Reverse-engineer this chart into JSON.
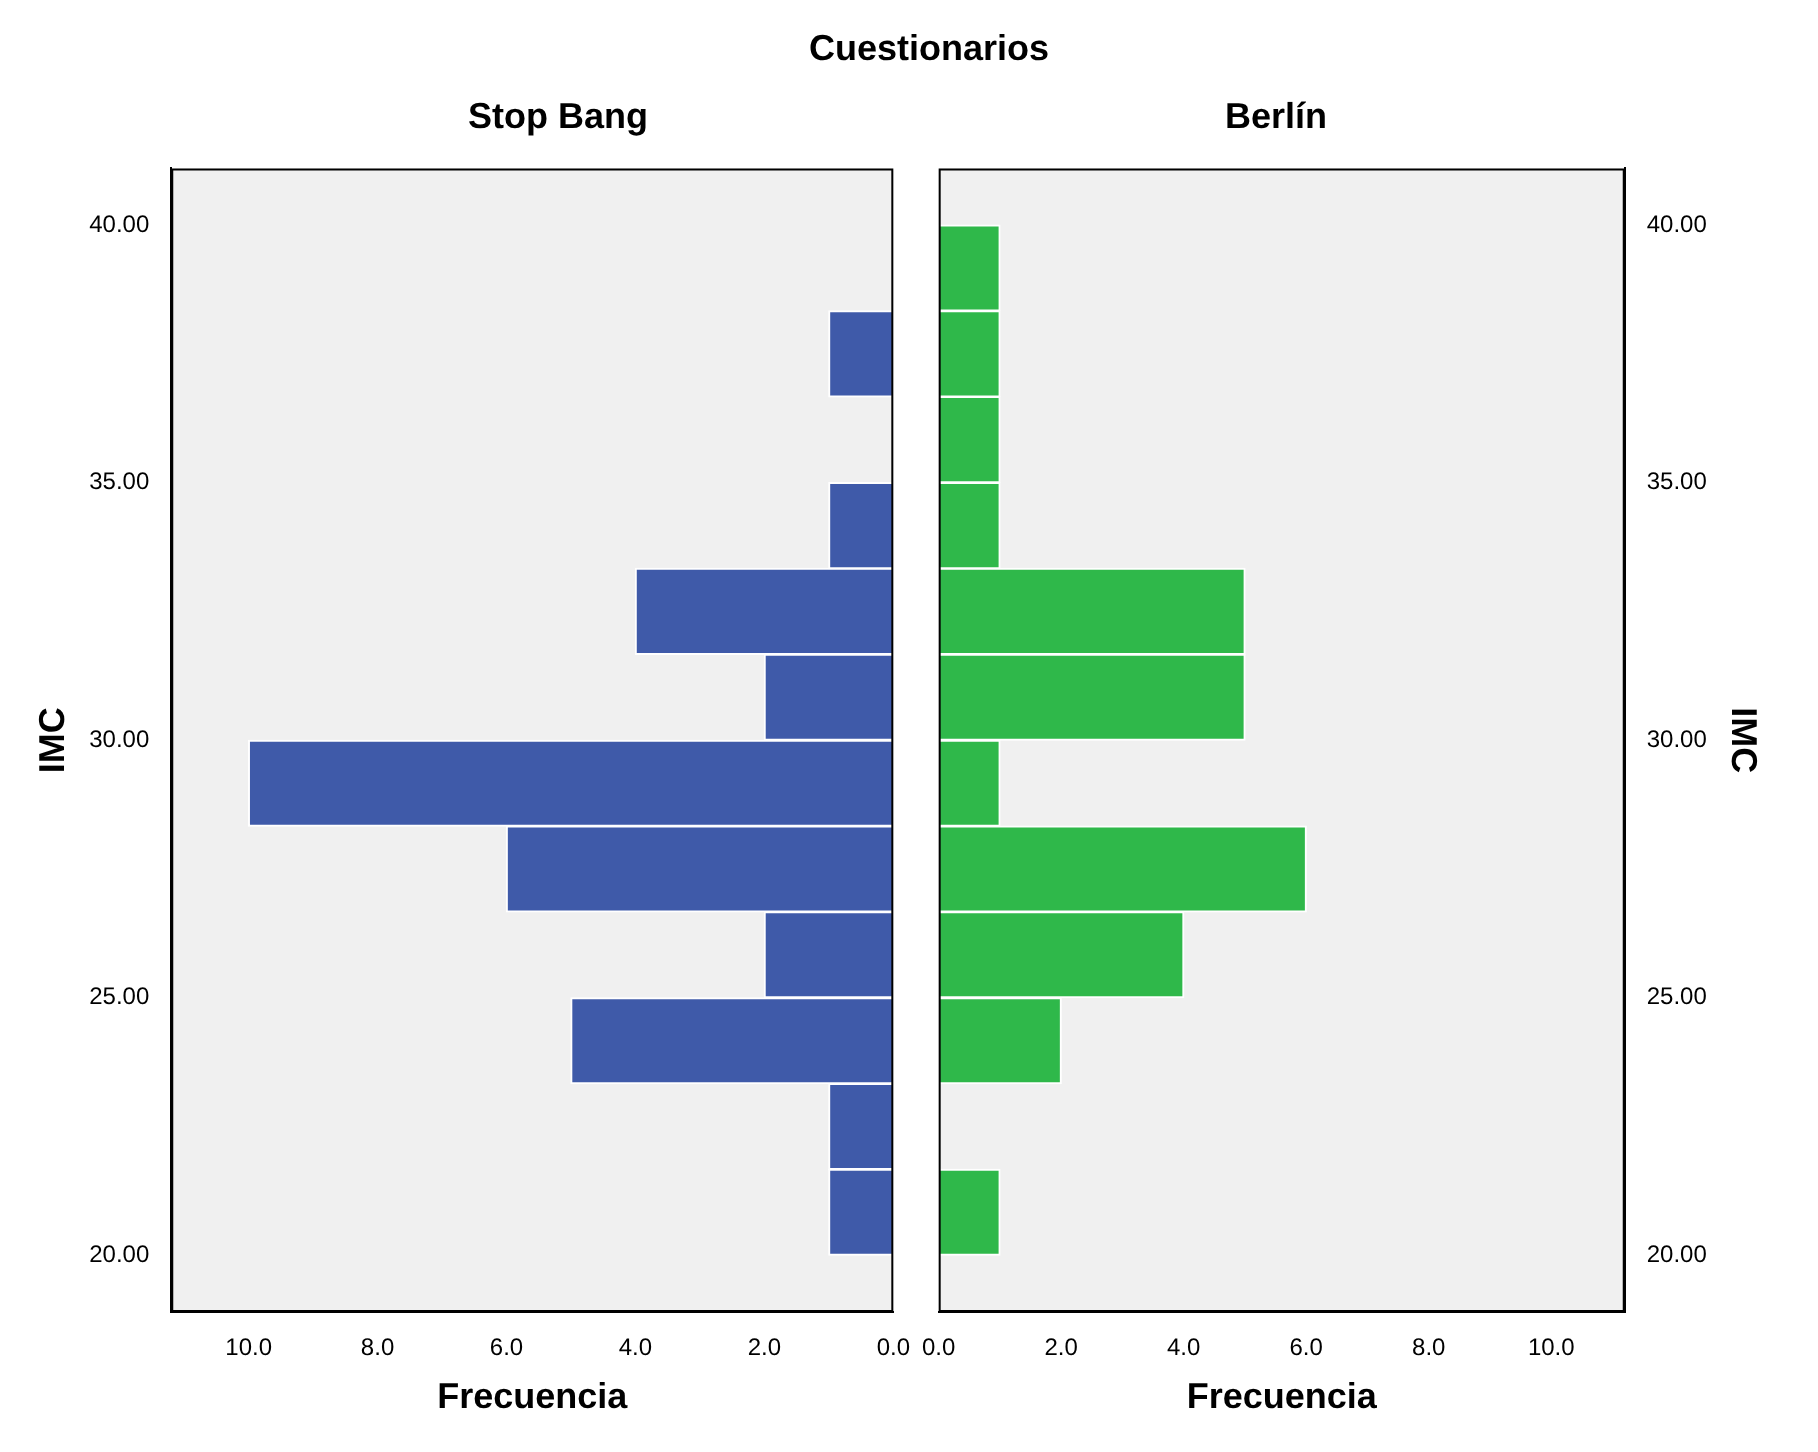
{
  "chart_data": [
    {
      "type": "histogram",
      "title": "Cuestionarios",
      "subtitle": "Stop Bang",
      "orientation": "horizontal",
      "xlabel": "Frecuencia",
      "ylabel": "IMC",
      "color": "#3f5aa9",
      "bins": [
        20,
        21.67,
        23.33,
        25,
        26.67,
        28.33,
        30,
        31.67,
        33.33,
        35,
        36.67,
        38.33,
        40
      ],
      "values": [
        1,
        1,
        5,
        2,
        6,
        10,
        2,
        4,
        1,
        0,
        1,
        0
      ],
      "xlim": [
        11.2,
        0
      ],
      "xticks": [
        {
          "value": 10,
          "label": "10.0"
        },
        {
          "value": 8,
          "label": "8.0"
        },
        {
          "value": 6,
          "label": "6.0"
        },
        {
          "value": 4,
          "label": "4.0"
        },
        {
          "value": 2,
          "label": "2.0"
        },
        {
          "value": 0,
          "label": "0.0"
        }
      ],
      "ylim": [
        18.9,
        41.1
      ],
      "yticks": [
        {
          "value": 20,
          "label": "20.00"
        },
        {
          "value": 25,
          "label": "25.00"
        },
        {
          "value": 30,
          "label": "30.00"
        },
        {
          "value": 35,
          "label": "35.00"
        },
        {
          "value": 40,
          "label": "40.00"
        }
      ]
    },
    {
      "type": "histogram",
      "subtitle": "Berlín",
      "orientation": "horizontal",
      "xlabel": "Frecuencia",
      "ylabel": "IMC",
      "color": "#2fb84a",
      "bins": [
        20,
        21.67,
        23.33,
        25,
        26.67,
        28.33,
        30,
        31.67,
        33.33,
        35,
        36.67,
        38.33,
        40
      ],
      "values": [
        1,
        0,
        2,
        4,
        6,
        1,
        5,
        5,
        1,
        1,
        1,
        1
      ],
      "xlim": [
        0,
        11.2
      ],
      "xticks": [
        {
          "value": 0,
          "label": "0.0"
        },
        {
          "value": 2,
          "label": "2.0"
        },
        {
          "value": 4,
          "label": "4.0"
        },
        {
          "value": 6,
          "label": "6.0"
        },
        {
          "value": 8,
          "label": "8.0"
        },
        {
          "value": 10,
          "label": "10.0"
        }
      ],
      "ylim": [
        18.9,
        41.1
      ],
      "yticks": [
        {
          "value": 20,
          "label": "20.00"
        },
        {
          "value": 25,
          "label": "25.00"
        },
        {
          "value": 30,
          "label": "30.00"
        },
        {
          "value": 35,
          "label": "35.00"
        },
        {
          "value": 40,
          "label": "40.00"
        }
      ]
    }
  ]
}
